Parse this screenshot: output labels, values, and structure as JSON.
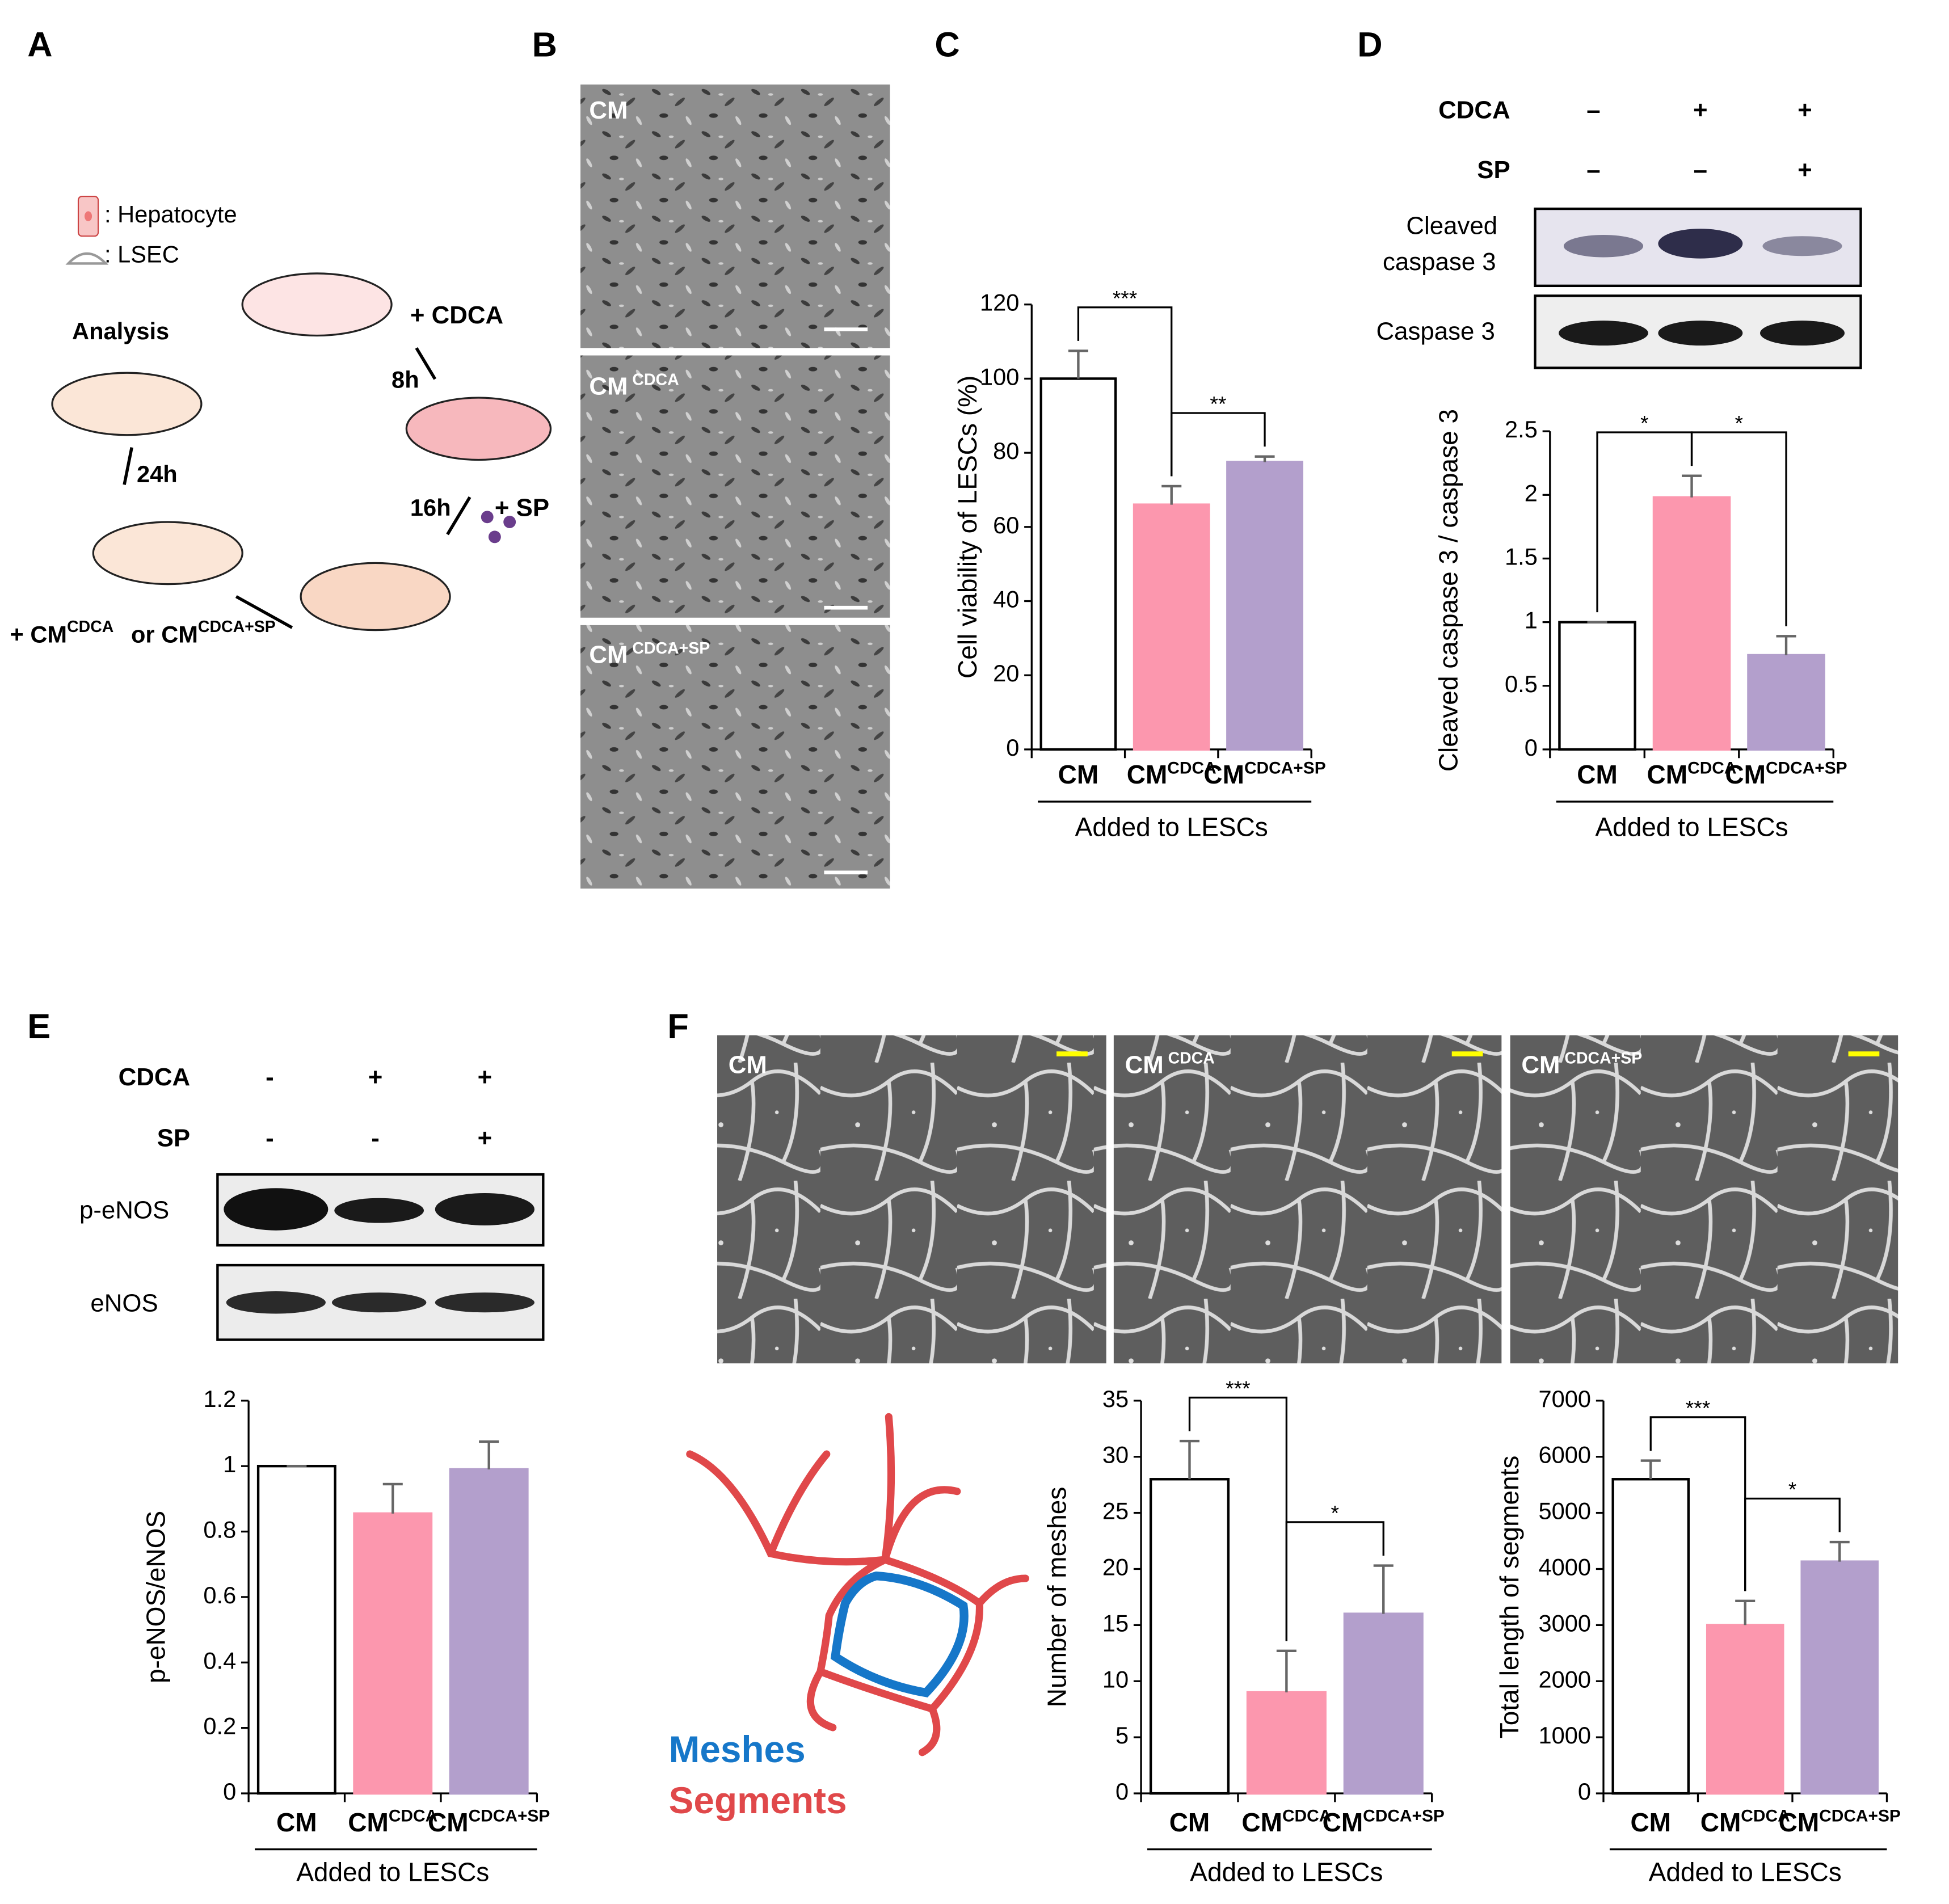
{
  "panels": {
    "labels": [
      "A",
      "B",
      "C",
      "D",
      "E",
      "F"
    ]
  },
  "schematic": {
    "hepatocyte": ": Hepatocyte",
    "lsec": ": LSEC",
    "analysis": "Analysis",
    "cdca": "+ CDCA",
    "t8": "8h",
    "t16": "16h",
    "t24": "24h",
    "sp": "+ SP",
    "treatment": [
      "+ CM",
      "CDCA",
      "or CM",
      "CDCA+SP"
    ]
  },
  "micrographs": {
    "labels": [
      "CM",
      "CM CDCA",
      "CM CDCA+SP"
    ]
  },
  "tube_images": {
    "labels": [
      "CM",
      "CM CDCA",
      "CM CDCA+SP"
    ]
  },
  "blot_d": {
    "rows": [
      {
        "name": "CDCA",
        "signs": [
          "–",
          "+",
          "+"
        ]
      },
      {
        "name": "SP",
        "signs": [
          "–",
          "–",
          "+"
        ]
      }
    ],
    "bands": [
      [
        "Cleaved",
        "caspase 3"
      ],
      [
        "Caspase 3"
      ]
    ]
  },
  "blot_e": {
    "rows": [
      {
        "name": "CDCA",
        "signs": [
          "-",
          "+",
          "+"
        ]
      },
      {
        "name": "SP",
        "signs": [
          "-",
          "-",
          "+"
        ]
      }
    ],
    "bands": [
      [
        "p-eNOS"
      ],
      [
        "eNOS"
      ]
    ]
  },
  "network": {
    "meshes": "Meshes",
    "segments": "Segments"
  },
  "chart_data": [
    {
      "type": "bar",
      "ylabel": "Cell viability  of LESCs (%)",
      "xlabel": "Added to LESCs",
      "categories": [
        "CM",
        "CMCDCA",
        "CMCDCA+SP"
      ],
      "values": [
        100,
        66,
        77.5
      ],
      "errors": [
        7.5,
        5,
        1.5
      ],
      "colors": [
        "#ffffff",
        "#fc97ae",
        "#b39fcc"
      ],
      "edgecolors": [
        "#000000",
        "#fc97ae",
        "#b39fcc"
      ],
      "ylim": [
        0,
        120
      ],
      "yticks": [
        0,
        20,
        40,
        60,
        80,
        100,
        120
      ],
      "annotations": [
        {
          "text": "***",
          "between": [
            0,
            1
          ]
        },
        {
          "text": "**",
          "between": [
            1,
            2
          ]
        }
      ]
    },
    {
      "type": "bar",
      "ylabel": "Cleaved  caspase 3 / caspase 3",
      "xlabel": "Added to LESCs",
      "categories": [
        "CM",
        "CMCDCA",
        "CMCDCA+SP"
      ],
      "values": [
        1,
        1.98,
        0.74
      ],
      "errors": [
        0,
        0.17,
        0.15
      ],
      "colors": [
        "#ffffff",
        "#fc97ae",
        "#b39fcc"
      ],
      "edgecolors": [
        "#000000",
        "#fc97ae",
        "#b39fcc"
      ],
      "ylim": [
        0,
        2.5
      ],
      "yticks": [
        0,
        0.5,
        1,
        1.5,
        2,
        2.5
      ],
      "annotations": [
        {
          "text": "*",
          "between": [
            0,
            1
          ]
        },
        {
          "text": "*",
          "between": [
            1,
            2
          ]
        }
      ]
    },
    {
      "type": "bar",
      "ylabel": "p-eNOS/eNOS",
      "xlabel": "Added to LESCs",
      "categories": [
        "CM",
        "CMCDCA",
        "CMCDCA+SP"
      ],
      "values": [
        1,
        0.855,
        0.99
      ],
      "errors": [
        0,
        0.09,
        0.085
      ],
      "colors": [
        "#ffffff",
        "#fc97ae",
        "#b39fcc"
      ],
      "edgecolors": [
        "#000000",
        "#fc97ae",
        "#b39fcc"
      ],
      "ylim": [
        0,
        1.2
      ],
      "yticks": [
        0,
        0.2,
        0.4,
        0.6,
        0.8,
        1,
        1.2
      ],
      "annotations": []
    },
    {
      "type": "bar",
      "ylabel": "Number  of meshes",
      "xlabel": "Added to LESCs",
      "categories": [
        "CM",
        "CMCDCA",
        "CMCDCA+SP"
      ],
      "values": [
        28,
        9,
        16
      ],
      "errors": [
        3.4,
        3.7,
        4.3
      ],
      "colors": [
        "#ffffff",
        "#fc97ae",
        "#b39fcc"
      ],
      "edgecolors": [
        "#000000",
        "#fc97ae",
        "#b39fcc"
      ],
      "ylim": [
        0,
        35
      ],
      "yticks": [
        0,
        5,
        10,
        15,
        20,
        25,
        30,
        35
      ],
      "annotations": [
        {
          "text": "***",
          "between": [
            0,
            1
          ]
        },
        {
          "text": "*",
          "between": [
            1,
            2
          ]
        }
      ]
    },
    {
      "type": "bar",
      "ylabel": "Total length of segments",
      "xlabel": "Added to LESCs",
      "categories": [
        "CM",
        "CMCDCA",
        "CMCDCA+SP"
      ],
      "values": [
        5600,
        3000,
        4130
      ],
      "errors": [
        330,
        430,
        350
      ],
      "colors": [
        "#ffffff",
        "#fc97ae",
        "#b39fcc"
      ],
      "edgecolors": [
        "#000000",
        "#fc97ae",
        "#b39fcc"
      ],
      "ylim": [
        0,
        7000
      ],
      "yticks": [
        0,
        1000,
        2000,
        3000,
        4000,
        5000,
        6000,
        7000
      ],
      "annotations": [
        {
          "text": "***",
          "between": [
            0,
            1
          ]
        },
        {
          "text": "*",
          "between": [
            1,
            2
          ]
        }
      ]
    }
  ]
}
